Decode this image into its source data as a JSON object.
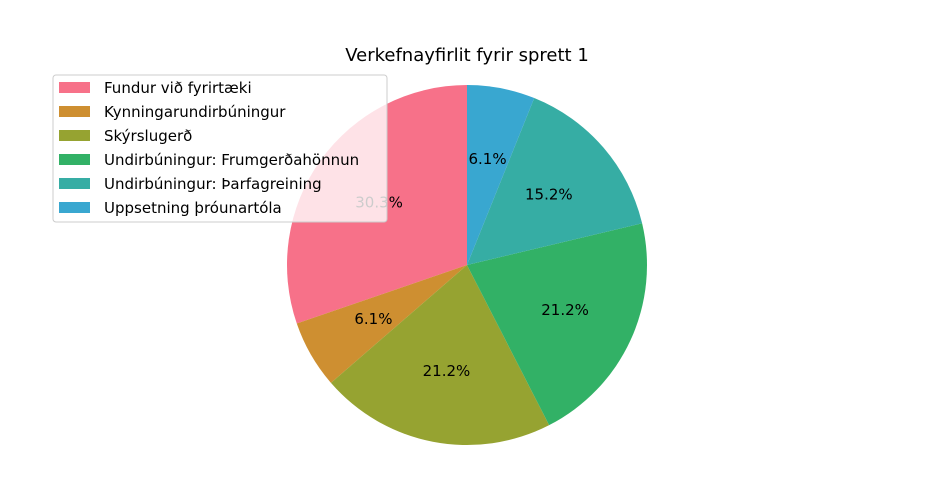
{
  "chart_data": {
    "type": "pie",
    "title": "Verkefnayfirlit fyrir sprett 1",
    "slices": [
      {
        "label": "Fundur við fyrirtæki",
        "value": 30.3,
        "pct_label": "30.3%",
        "color": "#f77189"
      },
      {
        "label": "Kynningarundirbúningur",
        "value": 6.1,
        "pct_label": "6.1%",
        "color": "#ce8f31"
      },
      {
        "label": "Skýrslugerð",
        "value": 21.2,
        "pct_label": "21.2%",
        "color": "#96a331"
      },
      {
        "label": "Undirbúningur: Frumgerðahönnun",
        "value": 21.2,
        "pct_label": "21.2%",
        "color": "#32b166"
      },
      {
        "label": "Undirbúningur: Þarfagreining",
        "value": 15.2,
        "pct_label": "15.2%",
        "color": "#36ada4"
      },
      {
        "label": "Uppsetning þróunartóla",
        "value": 6.1,
        "pct_label": "6.1%",
        "color": "#39a7d0"
      }
    ],
    "start_angle_deg": 90,
    "direction": "counterclockwise",
    "legend_position": "upper-left"
  }
}
